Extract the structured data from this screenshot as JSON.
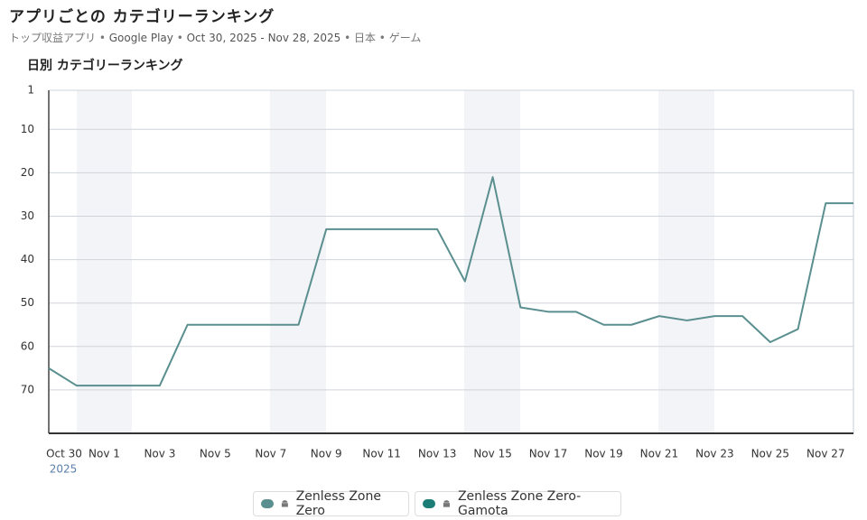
{
  "header": {
    "title": "アプリごとの カテゴリーランキング",
    "subtitle": [
      "トップ収益アプリ",
      "Google Play",
      "Oct 30, 2025 - Nov 28, 2025",
      "日本",
      "ゲーム"
    ]
  },
  "chart_data": {
    "type": "line",
    "title": "日別 カテゴリーランキング",
    "x": [
      "Oct 30",
      null,
      "Nov 1",
      null,
      "Nov 3",
      null,
      "Nov 5",
      null,
      "Nov 7",
      null,
      "Nov 9",
      null,
      "Nov 11",
      null,
      "Nov 13",
      null,
      "Nov 15",
      null,
      "Nov 17",
      null,
      "Nov 19",
      null,
      "Nov 21",
      null,
      "Nov 23",
      null,
      "Nov 25",
      null,
      "Nov 27",
      null
    ],
    "x_year": "2025",
    "series": [
      {
        "name": "Zenless Zone Zero",
        "color": "#5b8f8f",
        "values": [
          65,
          69,
          69,
          69,
          69,
          55,
          55,
          55,
          55,
          55,
          33,
          33,
          33,
          33,
          33,
          45,
          21,
          51,
          52,
          52,
          55,
          55,
          53,
          54,
          53,
          53,
          59,
          56,
          27,
          27
        ]
      },
      {
        "name": "Zenless Zone Zero-Gamota",
        "color": "#1b7d75",
        "values": [
          null,
          null,
          null,
          null,
          null,
          null,
          null,
          null,
          null,
          null,
          null,
          null,
          null,
          null,
          null,
          null,
          null,
          null,
          null,
          null,
          null,
          null,
          null,
          null,
          null,
          null,
          null,
          null,
          null,
          null
        ]
      }
    ],
    "ylim": [
      80,
      1
    ],
    "yticks": [
      1,
      10,
      20,
      30,
      40,
      50,
      60,
      70
    ],
    "grid": true
  }
}
